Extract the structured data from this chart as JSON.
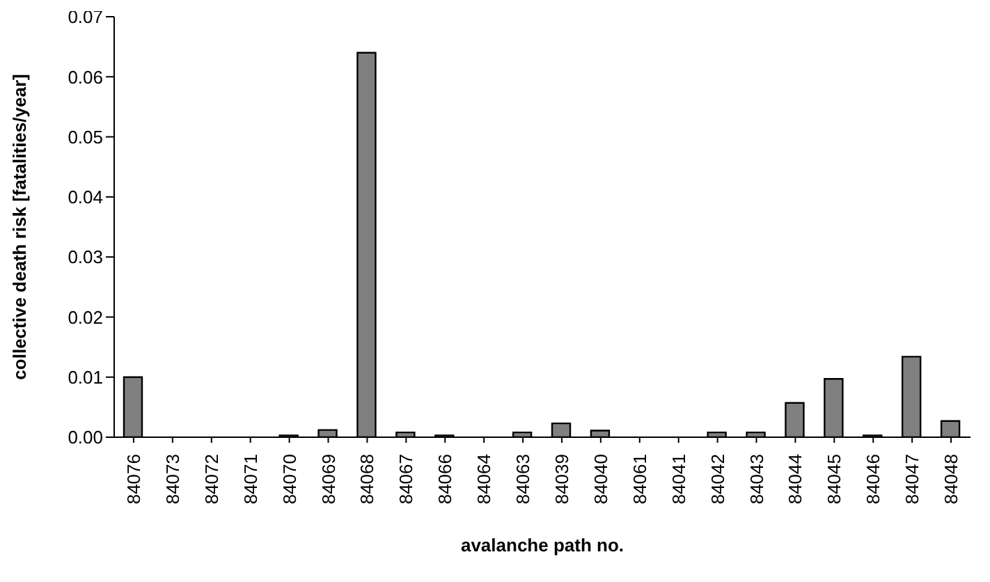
{
  "chart_data": {
    "type": "bar",
    "xlabel": "avalanche path no.",
    "ylabel": "collective death risk [fatalities/year]",
    "categories": [
      "84076",
      "84073",
      "84072",
      "84071",
      "84070",
      "84069",
      "84068",
      "84067",
      "84066",
      "84064",
      "84063",
      "84039",
      "84040",
      "84061",
      "84041",
      "84042",
      "84043",
      "84044",
      "84045",
      "84046",
      "84047",
      "84048"
    ],
    "values": [
      0.01,
      0,
      0,
      0,
      0.0003,
      0.0012,
      0.064,
      0.0008,
      0.0003,
      0,
      0.0008,
      0.0023,
      0.0011,
      0,
      0,
      0.0008,
      0.0008,
      0.0057,
      0.0097,
      0.0003,
      0.0134,
      0.0027
    ],
    "color": "#808080",
    "ylim": [
      0,
      0.07
    ],
    "yticks": [
      {
        "value": 0,
        "label": "0.00"
      },
      {
        "value": 0.01,
        "label": "0.01"
      },
      {
        "value": 0.02,
        "label": "0.02"
      },
      {
        "value": 0.03,
        "label": "0.03"
      },
      {
        "value": 0.04,
        "label": "0.04"
      },
      {
        "value": 0.05,
        "label": "0.05"
      },
      {
        "value": 0.06,
        "label": "0.06"
      },
      {
        "value": 0.07,
        "label": "0.07"
      }
    ],
    "grid": false,
    "legend": false
  }
}
